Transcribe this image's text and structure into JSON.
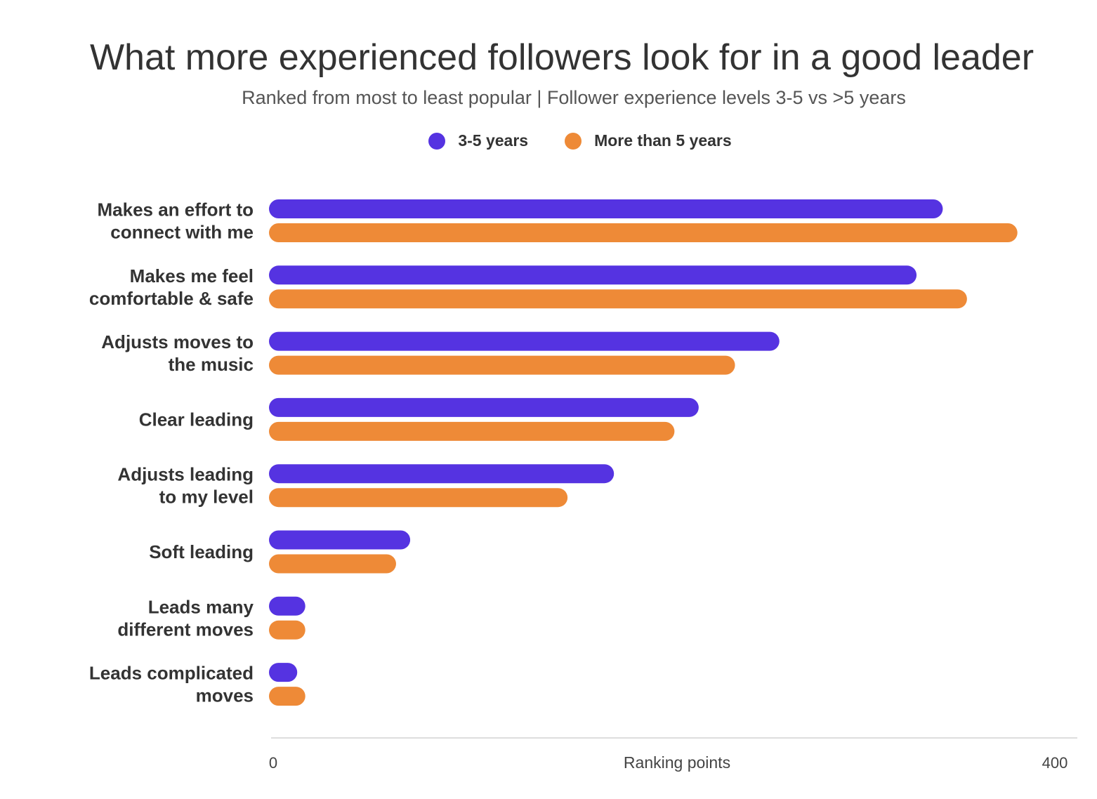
{
  "chart_data": {
    "type": "bar",
    "orientation": "horizontal",
    "title": "What more experienced followers look for in a good leader",
    "subtitle": "Ranked from most to least popular | Follower experience levels 3-5 vs >5 years",
    "xlabel": "Ranking points",
    "ylabel": "",
    "xlim": [
      0,
      400
    ],
    "x_ticks": [
      "0",
      "400"
    ],
    "legend_position": "top-center",
    "grid": false,
    "categories": [
      [
        "Makes an effort to",
        "connect with me"
      ],
      [
        "Makes me feel",
        "comfortable & safe"
      ],
      [
        "Adjusts moves to",
        "the music"
      ],
      [
        "Clear leading"
      ],
      [
        "Adjusts leading",
        "to my level"
      ],
      [
        "Soft leading"
      ],
      [
        "Leads many",
        "different moves"
      ],
      [
        "Leads complicated",
        "moves"
      ]
    ],
    "series": [
      {
        "name": "3-5 years",
        "color": "#5533E1",
        "values": [
          334,
          321,
          253,
          213,
          171,
          70,
          18,
          14
        ]
      },
      {
        "name": "More than 5 years",
        "color": "#EE8A37",
        "values": [
          371,
          346,
          231,
          201,
          148,
          63,
          18,
          18
        ]
      }
    ]
  }
}
